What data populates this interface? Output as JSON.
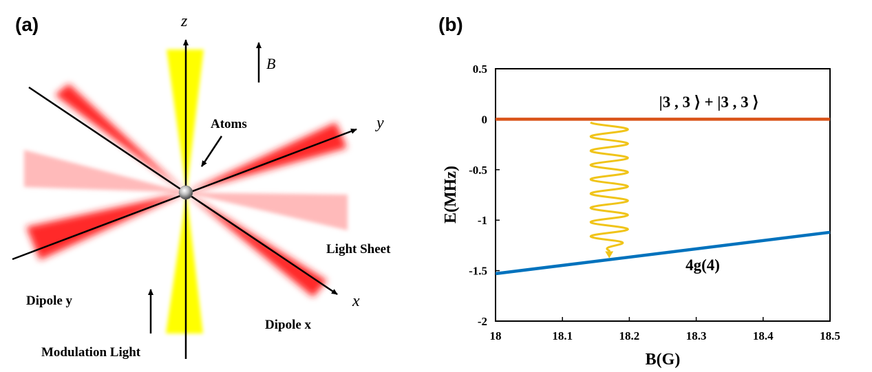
{
  "panel_a": {
    "label": "(a)",
    "axis_z": "z",
    "axis_y": "y",
    "axis_x": "x",
    "field": "B",
    "atoms": "Atoms",
    "light_sheet": "Light Sheet",
    "dipole_y": "Dipole y",
    "dipole_x": "Dipole x",
    "modulation": "Modulation Light",
    "colors": {
      "dipole": "#ff1a1a",
      "light_sheet": "#ffb3b3",
      "modulation": "#ffff00"
    }
  },
  "panel_b": {
    "label": "(b)",
    "upper_state_label": "|3 , 3 ⟩ + |3 , 3 ⟩",
    "lower_state_label": "4g(4)"
  },
  "chart_data": {
    "type": "line",
    "xlabel": "B(G)",
    "ylabel": "E(MHz)",
    "xlim": [
      18,
      18.5
    ],
    "ylim": [
      -2,
      0.5
    ],
    "xticks": [
      "18",
      "18.1",
      "18.2",
      "18.3",
      "18.4",
      "18.5"
    ],
    "yticks": [
      "0.5",
      "0",
      "-0.5",
      "-1",
      "-1.5",
      "-2"
    ],
    "series": [
      {
        "name": "|3 , 3 ⟩ + |3 , 3 ⟩",
        "color": "#d95319",
        "x": [
          18,
          18.5
        ],
        "y": [
          0,
          0
        ]
      },
      {
        "name": "4g(4)",
        "color": "#0072bd",
        "x": [
          18,
          18.5
        ],
        "y": [
          -1.53,
          -1.12
        ]
      }
    ],
    "transition_arrow": {
      "x": 18.17,
      "y_start": -0.03,
      "y_end": -1.37,
      "color": "#f0c419"
    }
  }
}
